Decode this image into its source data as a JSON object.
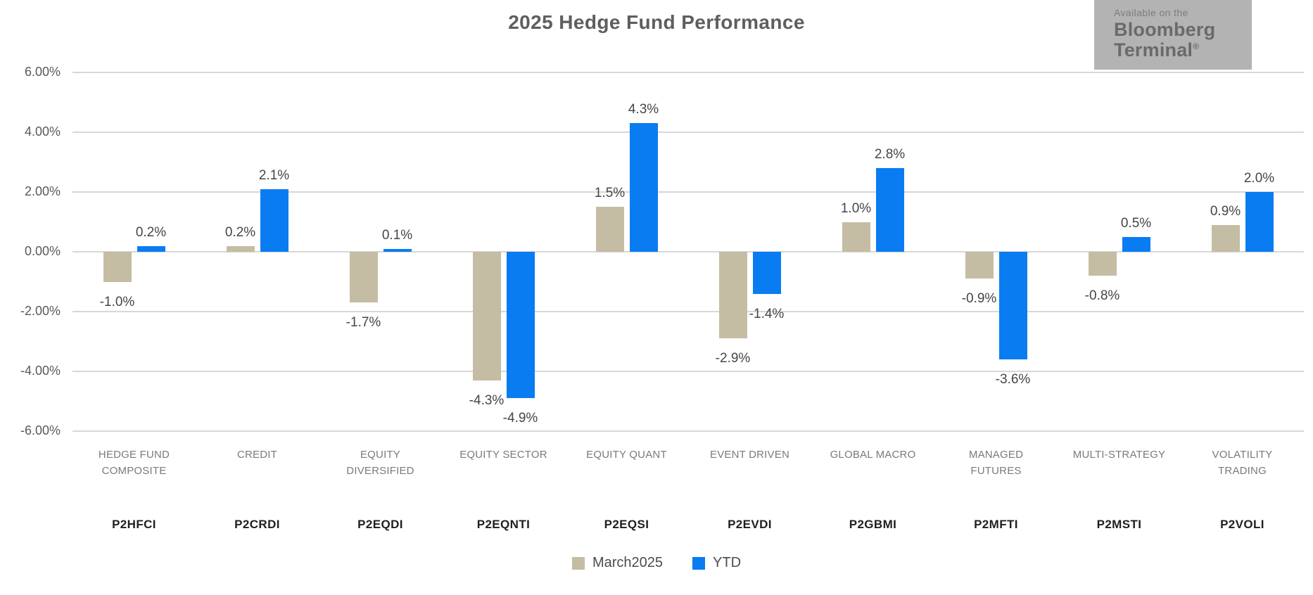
{
  "title": "2025 Hedge Fund Performance",
  "badge": {
    "tagline": "Available on the",
    "brand_line1": "Bloomberg",
    "brand_line2": "Terminal",
    "registered_mark": "®"
  },
  "chart_data": {
    "type": "bar",
    "title": "2025 Hedge Fund Performance",
    "categories": [
      "HEDGE FUND\nCOMPOSITE",
      "CREDIT",
      "EQUITY\nDIVERSIFIED",
      "EQUITY SECTOR",
      "EQUITY QUANT",
      "EVENT DRIVEN",
      "GLOBAL MACRO",
      "MANAGED\nFUTURES",
      "MULTI-STRATEGY",
      "VOLATILITY\nTRADING"
    ],
    "tickers": [
      "P2HFCI",
      "P2CRDI",
      "P2EQDI",
      "P2EQNTI",
      "P2EQSI",
      "P2EVDI",
      "P2GBMI",
      "P2MFTI",
      "P2MSTI",
      "P2VOLI"
    ],
    "series": [
      {
        "name": "March2025",
        "color": "#c4bda4",
        "values": [
          -1.0,
          0.2,
          -1.7,
          -4.3,
          1.5,
          -2.9,
          1.0,
          -0.9,
          -0.8,
          0.9
        ]
      },
      {
        "name": "YTD",
        "color": "#0a7cf2",
        "values": [
          0.2,
          2.1,
          0.1,
          -4.9,
          4.3,
          -1.4,
          2.8,
          -3.6,
          0.5,
          2.0
        ]
      }
    ],
    "value_suffix": "%",
    "value_decimals": 1,
    "ylim": [
      -6,
      6
    ],
    "y_ticks": [
      {
        "label": "6.00%",
        "value": 6
      },
      {
        "label": "4.00%",
        "value": 4
      },
      {
        "label": "2.00%",
        "value": 2
      },
      {
        "label": "0.00%",
        "value": 0
      },
      {
        "label": "-2.00%",
        "value": -2
      },
      {
        "label": "-4.00%",
        "value": -4
      },
      {
        "label": "-6.00%",
        "value": -6
      }
    ],
    "grid": true,
    "legend_position": "bottom"
  },
  "colors": {
    "march_series": "#c4bda4",
    "ytd_series": "#0a7cf2",
    "gridline": "#d7d7d7",
    "badge_background": "#b3b3b3",
    "title_text": "#5e5e5e"
  }
}
